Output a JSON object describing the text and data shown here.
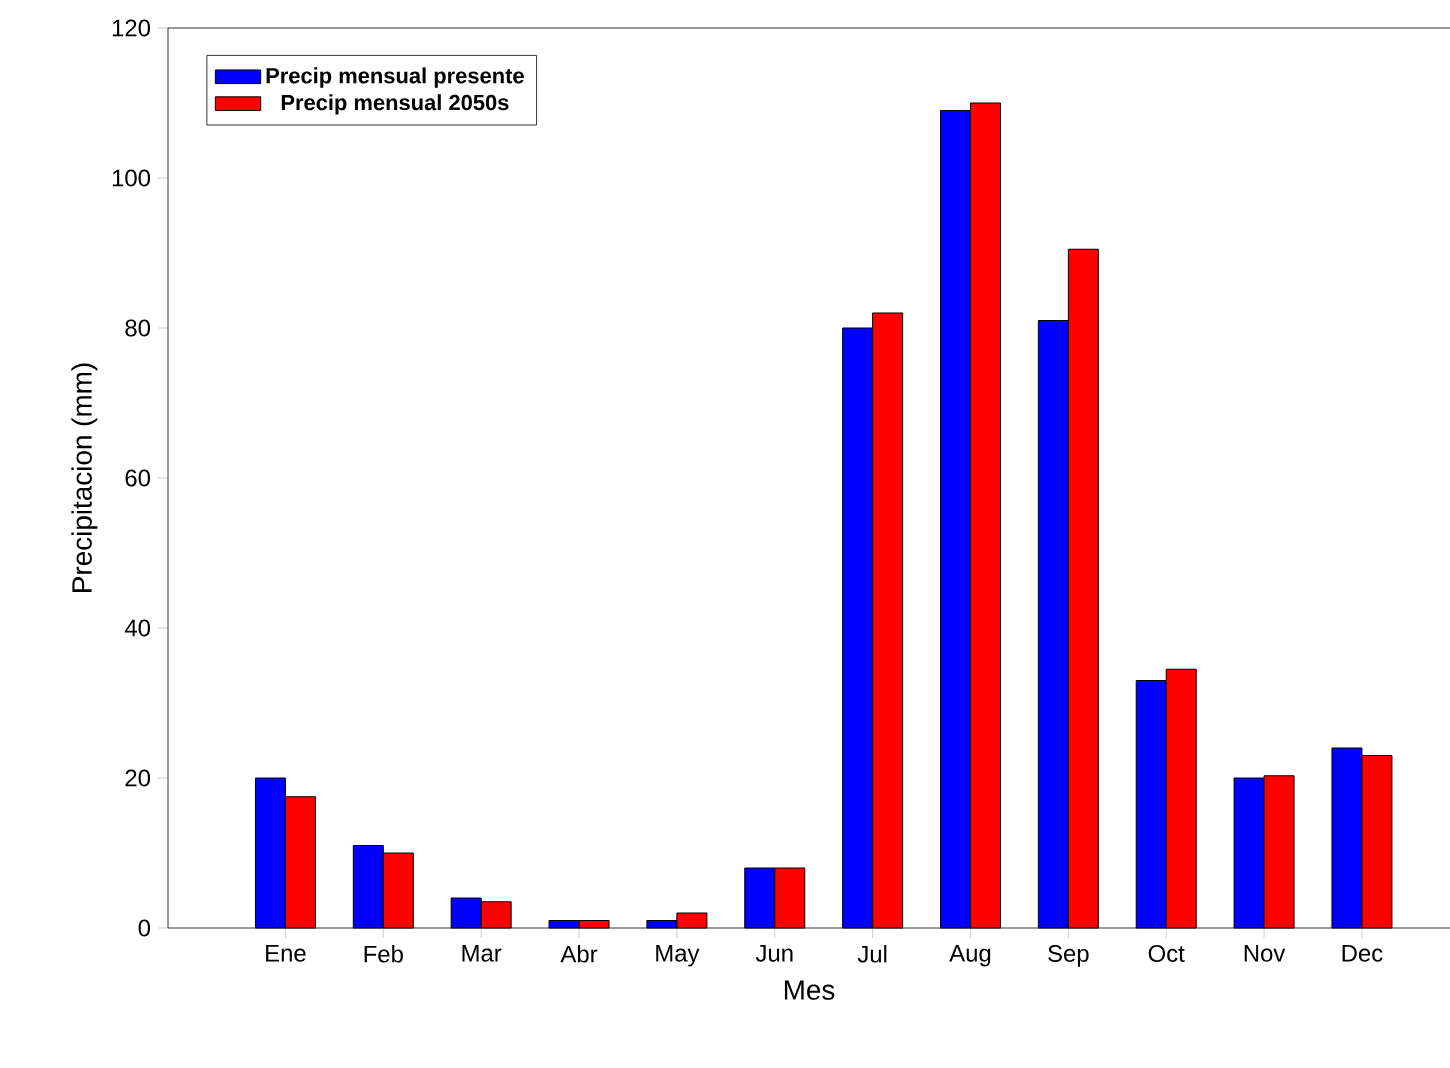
{
  "chart_data": {
    "type": "bar",
    "xlabel": "Mes",
    "ylabel": "Precipitacion (mm)",
    "categories": [
      "Ene",
      "Feb",
      "Mar",
      "Abr",
      "May",
      "Jun",
      "Jul",
      "Aug",
      "Sep",
      "Oct",
      "Nov",
      "Dec"
    ],
    "series": [
      {
        "name": "Precip mensual presente",
        "color": "#0000ff",
        "values": [
          20,
          11,
          4,
          1,
          1,
          8,
          80,
          109,
          81,
          33,
          20,
          24
        ]
      },
      {
        "name": "Precip mensual 2050s",
        "color": "#ff0000",
        "values": [
          17.5,
          10,
          3.5,
          1,
          2,
          8,
          82,
          110,
          90.5,
          34.5,
          20.3,
          23
        ]
      }
    ],
    "ylim": [
      0,
      120
    ],
    "yticks": [
      0,
      20,
      40,
      60,
      80,
      100,
      120
    ],
    "legend": "top left"
  }
}
